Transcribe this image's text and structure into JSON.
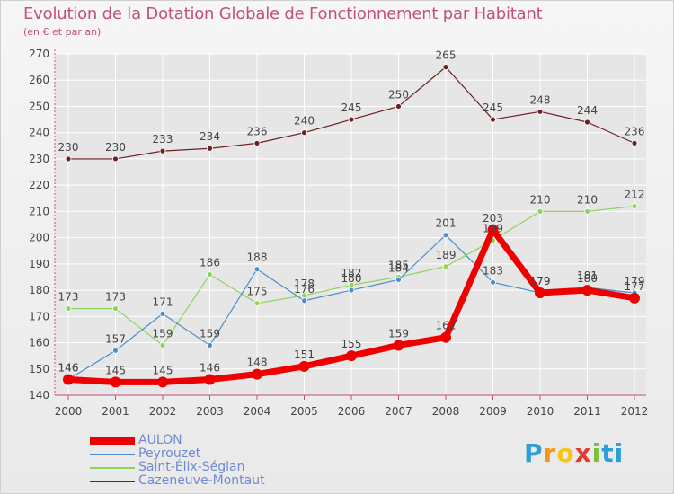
{
  "header": {
    "title": "Evolution de la Dotation Globale de Fonctionnement par Habitant",
    "subtitle": "(en € et par an)"
  },
  "brand": {
    "letters": [
      "P",
      "r",
      "o",
      "x",
      "i",
      "ti"
    ]
  },
  "colors": {
    "title": "#c2507d",
    "axis": "#c2507d",
    "tick_text": "#444444",
    "grid": "#ffffff",
    "legend_text": "#6f8bd0"
  },
  "chart_data": {
    "type": "line",
    "title": "Evolution de la Dotation Globale de Fonctionnement par Habitant",
    "subtitle": "(en € et par an)",
    "xlabel": "",
    "ylabel": "",
    "ylim": [
      140,
      270
    ],
    "yticks": [
      140,
      150,
      160,
      170,
      180,
      190,
      200,
      210,
      220,
      230,
      240,
      250,
      260,
      270
    ],
    "categories": [
      "2000",
      "2001",
      "2002",
      "2003",
      "2004",
      "2005",
      "2006",
      "2007",
      "2008",
      "2009",
      "2010",
      "2011",
      "2012"
    ],
    "grid": true,
    "legend_position": "bottom-left",
    "series": [
      {
        "name": "Cazeneuve-Montaut",
        "color": "#6e1f24",
        "values": [
          230,
          230,
          233,
          234,
          236,
          240,
          245,
          250,
          265,
          245,
          248,
          244,
          236
        ]
      },
      {
        "name": "Saint-Élix-Séglan",
        "color": "#8ed45a",
        "values": [
          173,
          173,
          159,
          186,
          175,
          178,
          182,
          185,
          189,
          199,
          210,
          210,
          212
        ]
      },
      {
        "name": "Peyrouzet",
        "color": "#4b8fcc",
        "values": [
          146,
          157,
          171,
          159,
          188,
          176,
          180,
          184,
          201,
          183,
          179,
          181,
          179
        ]
      },
      {
        "name": "AULON",
        "color": "#ee0000",
        "values": [
          146,
          145,
          145,
          146,
          148,
          151,
          155,
          159,
          162,
          203,
          179,
          180,
          177
        ]
      }
    ],
    "legend_order": [
      "AULON",
      "Peyrouzet",
      "Saint-Élix-Séglan",
      "Cazeneuve-Montaut"
    ]
  }
}
